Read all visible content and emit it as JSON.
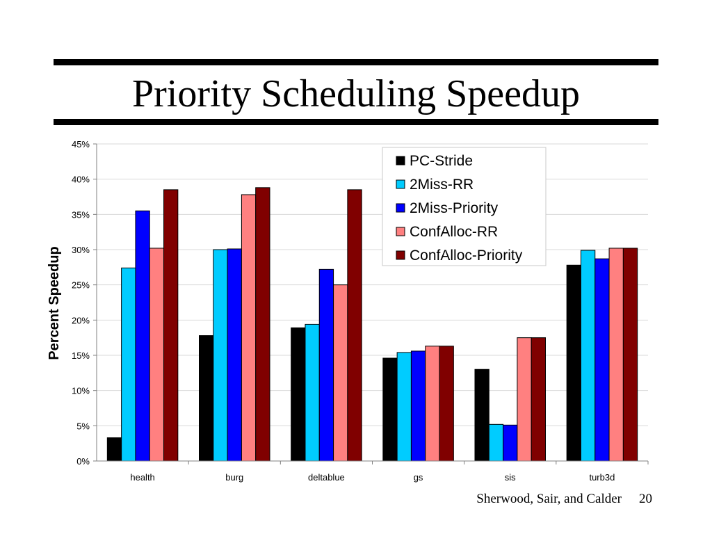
{
  "slide": {
    "title": "Priority Scheduling Speedup",
    "footer_authors": "Sherwood, Sair, and Calder",
    "page_number": "20"
  },
  "chart_data": {
    "type": "bar",
    "title": "",
    "xlabel": "",
    "ylabel": "Percent Speedup",
    "ylim": [
      0,
      45
    ],
    "y_ticks": [
      0,
      5,
      10,
      15,
      20,
      25,
      30,
      35,
      40,
      45
    ],
    "y_tick_labels": [
      "0%",
      "5%",
      "10%",
      "15%",
      "20%",
      "25%",
      "30%",
      "35%",
      "40%",
      "45%"
    ],
    "grid": true,
    "legend_position": "top-right",
    "categories": [
      "health",
      "burg",
      "deltablue",
      "gs",
      "sis",
      "turb3d"
    ],
    "series": [
      {
        "name": "PC-Stride",
        "color": "#000000",
        "values": [
          3.3,
          17.8,
          18.9,
          14.6,
          13.0,
          27.8
        ]
      },
      {
        "name": "2Miss-RR",
        "color": "#00CCFF",
        "values": [
          27.4,
          30.0,
          19.4,
          15.4,
          5.2,
          29.9
        ]
      },
      {
        "name": "2Miss-Priority",
        "color": "#0000FF",
        "values": [
          35.5,
          30.1,
          27.2,
          15.6,
          5.1,
          28.7
        ]
      },
      {
        "name": "ConfAlloc-RR",
        "color": "#FF8080",
        "values": [
          30.2,
          37.8,
          25.0,
          16.3,
          17.5,
          30.2
        ]
      },
      {
        "name": "ConfAlloc-Priority",
        "color": "#800000",
        "values": [
          38.5,
          38.8,
          38.5,
          16.3,
          17.5,
          30.2
        ]
      }
    ]
  }
}
